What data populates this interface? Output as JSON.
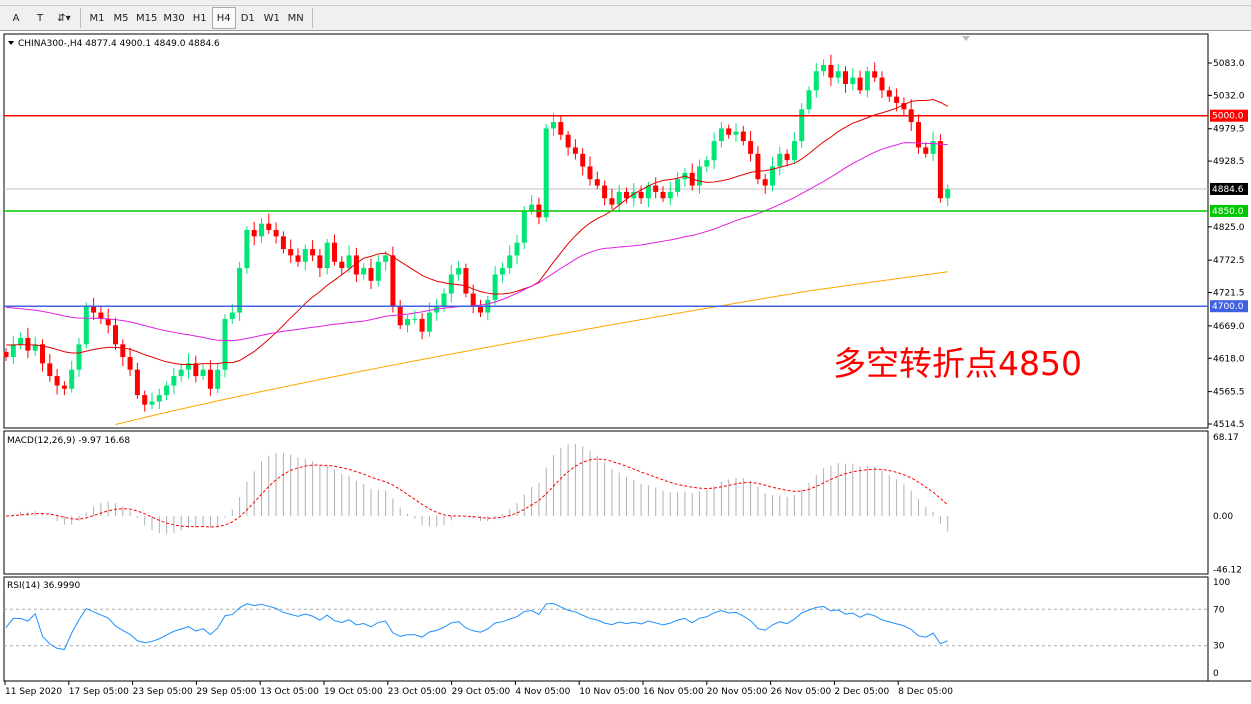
{
  "toolbar": {
    "tools": [
      {
        "name": "text-tool",
        "label": "A"
      },
      {
        "name": "text-label-tool",
        "label": "T"
      },
      {
        "name": "arrows-tool",
        "label": "⇵▾"
      }
    ],
    "timeframes": [
      "M1",
      "M5",
      "M15",
      "M30",
      "H1",
      "H4",
      "D1",
      "W1",
      "MN"
    ],
    "selected": "H4"
  },
  "chart": {
    "symbol_info": "CHINA300-,H4  4877.4 4900.1 4849.0 4884.6",
    "price_labels": [
      "5083.0",
      "5032.0",
      "4979.5",
      "4928.5",
      "4825.0",
      "4772.5",
      "4721.5",
      "4669.0",
      "4618.0",
      "4565.5",
      "4514.5"
    ],
    "price_values": [
      5083.0,
      5032.0,
      4979.5,
      4928.5,
      4825.0,
      4772.5,
      4721.5,
      4669.0,
      4618.0,
      4565.5,
      4514.5
    ],
    "current_price": "4884.6",
    "levels": [
      {
        "value": 5000.0,
        "label": "5000.0",
        "color": "#ff0000"
      },
      {
        "value": 4850.0,
        "label": "4850.0",
        "color": "#00c800"
      },
      {
        "value": 4700.0,
        "label": "4700.0",
        "color": "#4060e0"
      }
    ],
    "annotation": "多空转折点4850",
    "colors": {
      "bull": "#00e676",
      "bear": "#ff0000",
      "ma_fast": "#e00000",
      "ma_mid": "#e020e0",
      "ma_slow": "#ffa500"
    },
    "closes": [
      4620,
      4640,
      4650,
      4630,
      4640,
      4610,
      4590,
      4575,
      4570,
      4600,
      4640,
      4700,
      4690,
      4680,
      4670,
      4640,
      4620,
      4600,
      4560,
      4545,
      4550,
      4560,
      4575,
      4590,
      4600,
      4610,
      4590,
      4600,
      4570,
      4600,
      4680,
      4690,
      4760,
      4820,
      4810,
      4830,
      4820,
      4810,
      4790,
      4780,
      4770,
      4790,
      4780,
      4760,
      4800,
      4770,
      4760,
      4780,
      4750,
      4760,
      4740,
      4770,
      4780,
      4700,
      4670,
      4680,
      4680,
      4660,
      4690,
      4700,
      4720,
      4750,
      4760,
      4720,
      4700,
      4690,
      4710,
      4750,
      4760,
      4780,
      4800,
      4850,
      4860,
      4840,
      4980,
      4990,
      4970,
      4950,
      4940,
      4920,
      4900,
      4890,
      4870,
      4860,
      4880,
      4870,
      4880,
      4870,
      4890,
      4880,
      4870,
      4880,
      4900,
      4910,
      4890,
      4920,
      4930,
      4960,
      4980,
      4970,
      4975,
      4960,
      4940,
      4900,
      4890,
      4920,
      4940,
      4930,
      4960,
      5010,
      5040,
      5070,
      5080,
      5060,
      5070,
      5050,
      5060,
      5040,
      5070,
      5060,
      5040,
      5030,
      5020,
      5010,
      4990,
      4950,
      4940,
      4960,
      4870,
      4884.6
    ]
  },
  "macd": {
    "label": "MACD(12,26,9) -9.97 16.68",
    "scale": [
      "68.17",
      "0.00",
      "-46.12"
    ],
    "scale_values": [
      68.17,
      0,
      -46.12
    ]
  },
  "rsi": {
    "label": "RSI(14) 36.9990",
    "scale": [
      "100",
      "70",
      "30",
      "0"
    ],
    "scale_values": [
      100,
      70,
      30,
      0
    ]
  },
  "time_axis": [
    "11 Sep 2020",
    "17 Sep 05:00",
    "23 Sep 05:00",
    "29 Sep 05:00",
    "13 Oct 05:00",
    "19 Oct 05:00",
    "23 Oct 05:00",
    "29 Oct 05:00",
    "4 Nov 05:00",
    "10 Nov 05:00",
    "16 Nov 05:00",
    "20 Nov 05:00",
    "26 Nov 05:00",
    "2 Dec 05:00",
    "8 Dec 05:00"
  ]
}
